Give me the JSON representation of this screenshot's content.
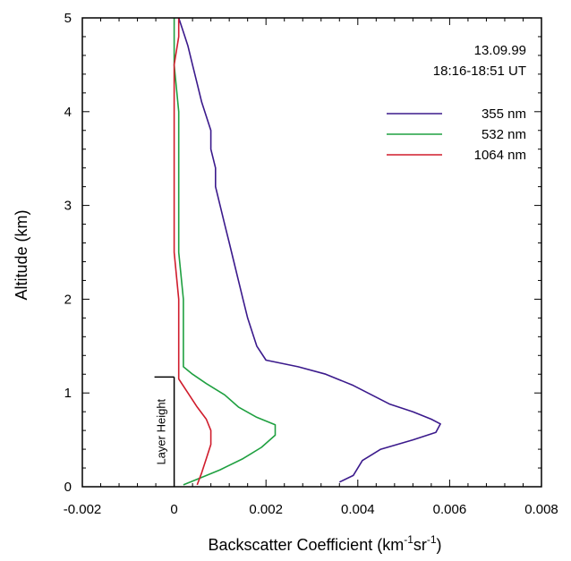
{
  "chart_data": {
    "type": "line",
    "xlabel": {
      "main": "Backscatter Coefficient (km",
      "sup1": "-1",
      "mid": "sr",
      "sup2": "-1",
      "end": ")"
    },
    "ylabel": "Altitude (km)",
    "xlim": [
      -0.002,
      0.008
    ],
    "ylim": [
      0,
      5
    ],
    "x_ticks": [
      -0.002,
      0,
      0.002,
      0.004,
      0.006,
      0.008
    ],
    "x_tick_labels": [
      "-0.002",
      "0",
      "0.002",
      "0.004",
      "0.006",
      "0.008"
    ],
    "y_ticks": [
      0,
      1,
      2,
      3,
      4,
      5
    ],
    "y_tick_labels": [
      "0",
      "1",
      "2",
      "3",
      "4",
      "5"
    ],
    "annotation": {
      "date": "13.09.99",
      "time": "18:16-18:51 UT"
    },
    "layer_height": {
      "label": "Layer Height",
      "altitude_km": 1.17
    },
    "legend_position": "top-right",
    "series": [
      {
        "name": "355 nm",
        "color": "#3b1a8c",
        "points": [
          [
            0.0036,
            0.05
          ],
          [
            0.0039,
            0.12
          ],
          [
            0.0041,
            0.28
          ],
          [
            0.0045,
            0.4
          ],
          [
            0.0052,
            0.5
          ],
          [
            0.0057,
            0.58
          ],
          [
            0.0058,
            0.67
          ],
          [
            0.0056,
            0.72
          ],
          [
            0.0052,
            0.8
          ],
          [
            0.0047,
            0.88
          ],
          [
            0.0043,
            0.98
          ],
          [
            0.0039,
            1.08
          ],
          [
            0.0033,
            1.2
          ],
          [
            0.0027,
            1.28
          ],
          [
            0.002,
            1.35
          ],
          [
            0.0018,
            1.5
          ],
          [
            0.0017,
            1.65
          ],
          [
            0.0016,
            1.8
          ],
          [
            0.0015,
            2.0
          ],
          [
            0.0014,
            2.2
          ],
          [
            0.0013,
            2.4
          ],
          [
            0.0012,
            2.6
          ],
          [
            0.0011,
            2.8
          ],
          [
            0.001,
            3.0
          ],
          [
            0.0009,
            3.2
          ],
          [
            0.0009,
            3.4
          ],
          [
            0.0008,
            3.6
          ],
          [
            0.0008,
            3.8
          ],
          [
            0.0007,
            3.95
          ],
          [
            0.0006,
            4.1
          ],
          [
            0.0005,
            4.3
          ],
          [
            0.0004,
            4.5
          ],
          [
            0.0003,
            4.7
          ],
          [
            0.0002,
            4.85
          ],
          [
            0.0001,
            5.0
          ]
        ]
      },
      {
        "name": "532 nm",
        "color": "#1fa040",
        "points": [
          [
            0.0002,
            0.02
          ],
          [
            0.0005,
            0.08
          ],
          [
            0.001,
            0.18
          ],
          [
            0.0015,
            0.3
          ],
          [
            0.0019,
            0.42
          ],
          [
            0.0022,
            0.55
          ],
          [
            0.0022,
            0.66
          ],
          [
            0.0018,
            0.74
          ],
          [
            0.0014,
            0.85
          ],
          [
            0.0011,
            0.98
          ],
          [
            0.0007,
            1.1
          ],
          [
            0.0004,
            1.2
          ],
          [
            0.0002,
            1.28
          ],
          [
            0.0002,
            1.35
          ],
          [
            0.0002,
            1.6
          ],
          [
            0.0002,
            2.0
          ],
          [
            0.0001,
            2.5
          ],
          [
            0.0001,
            3.0
          ],
          [
            0.0001,
            3.5
          ],
          [
            0.0001,
            4.0
          ],
          [
            0.0,
            4.5
          ],
          [
            0.0,
            4.85
          ],
          [
            0.0,
            5.0
          ]
        ]
      },
      {
        "name": "1064 nm",
        "color": "#d01c2c",
        "points": [
          [
            0.0005,
            0.02
          ],
          [
            0.0006,
            0.15
          ],
          [
            0.0007,
            0.3
          ],
          [
            0.0008,
            0.45
          ],
          [
            0.0008,
            0.6
          ],
          [
            0.0007,
            0.72
          ],
          [
            0.0005,
            0.85
          ],
          [
            0.0003,
            1.0
          ],
          [
            0.0001,
            1.15
          ],
          [
            0.0001,
            1.25
          ],
          [
            0.0001,
            1.4
          ],
          [
            0.0001,
            2.0
          ],
          [
            0.0,
            2.5
          ],
          [
            0.0,
            3.0
          ],
          [
            0.0,
            3.5
          ],
          [
            0.0,
            4.0
          ],
          [
            0.0,
            4.5
          ],
          [
            0.0001,
            4.8
          ],
          [
            0.0001,
            5.0
          ]
        ]
      }
    ]
  }
}
